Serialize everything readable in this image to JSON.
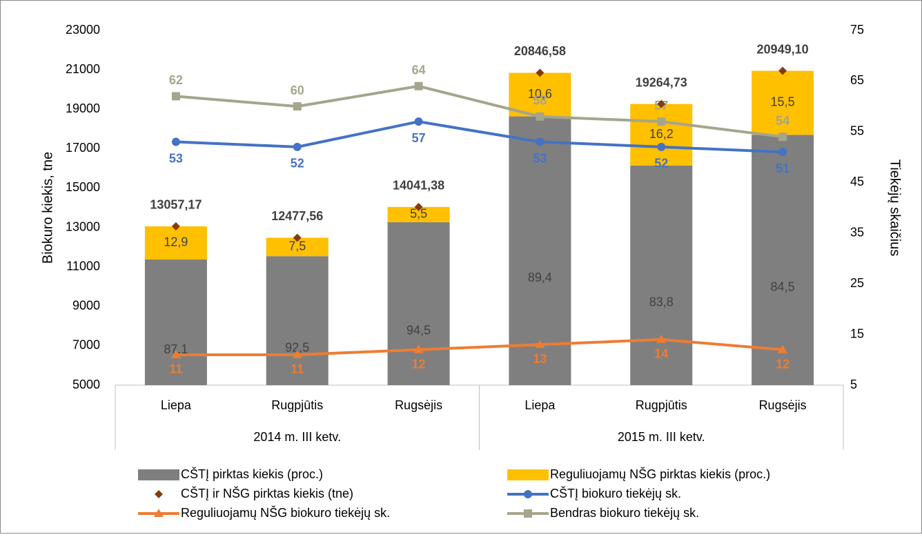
{
  "chart_data": {
    "type": "combo",
    "categories": [
      "Liepa",
      "Rugpjūtis",
      "Rugsėjis",
      "Liepa",
      "Rugpjūtis",
      "Rugsėjis"
    ],
    "groups": [
      {
        "label": "2014 m. III ketv.",
        "count": 3
      },
      {
        "label": "2015 m. III ketv.",
        "count": 3
      }
    ],
    "ylabel": "Biokuro kiekis, tne",
    "y2label": "Tiekėjų skaičius",
    "ylim": [
      5000,
      23000
    ],
    "yticks": [
      5000,
      7000,
      9000,
      11000,
      13000,
      15000,
      17000,
      19000,
      21000,
      23000
    ],
    "y2lim": [
      5,
      75
    ],
    "y2ticks": [
      5,
      15,
      25,
      35,
      45,
      55,
      65,
      75
    ],
    "series": [
      {
        "name": "CŠTĮ pirktas kiekis (proc.)",
        "type": "bar",
        "color": "#7f7f7f",
        "values": [
          87.1,
          92.5,
          94.5,
          89.4,
          83.8,
          84.5
        ],
        "value_labels": [
          "87,1",
          "92,5",
          "94,5",
          "89,4",
          "83,8",
          "84,5"
        ]
      },
      {
        "name": "Reguliuojamų NŠG pirktas kiekis (proc.)",
        "type": "bar",
        "color": "#ffc000",
        "values": [
          12.9,
          7.5,
          5.5,
          10.6,
          16.2,
          15.5
        ],
        "value_labels": [
          "12,9",
          "7,5",
          "5,5",
          "10,6",
          "16,2",
          "15,5"
        ]
      },
      {
        "name": "CŠTĮ ir NŠG pirktas kiekis (tne)",
        "type": "scatter",
        "marker": "diamond",
        "color": "#843c0c",
        "values": [
          13057.17,
          12477.56,
          14041.38,
          20846.58,
          19264.73,
          20949.1
        ],
        "value_labels": [
          "13057,17",
          "12477,56",
          "14041,38",
          "20846,58",
          "19264,73",
          "20949,10"
        ]
      },
      {
        "name": "CŠTĮ biokuro tiekėjų sk.",
        "type": "line",
        "marker": "circle",
        "axis": "y2",
        "color": "#4472c4",
        "values": [
          53,
          52,
          57,
          53,
          52,
          51
        ]
      },
      {
        "name": "Reguliuojamų NŠG biokuro tiekėjų sk.",
        "type": "line",
        "marker": "triangle",
        "axis": "y2",
        "color": "#ed7d31",
        "values": [
          11,
          11,
          12,
          13,
          14,
          12
        ]
      },
      {
        "name": "Bendras biokuro tiekėjų sk.",
        "type": "line",
        "marker": "square",
        "axis": "y2",
        "color": "#a5a58d",
        "values": [
          62,
          60,
          64,
          58,
          57,
          54
        ]
      }
    ]
  }
}
